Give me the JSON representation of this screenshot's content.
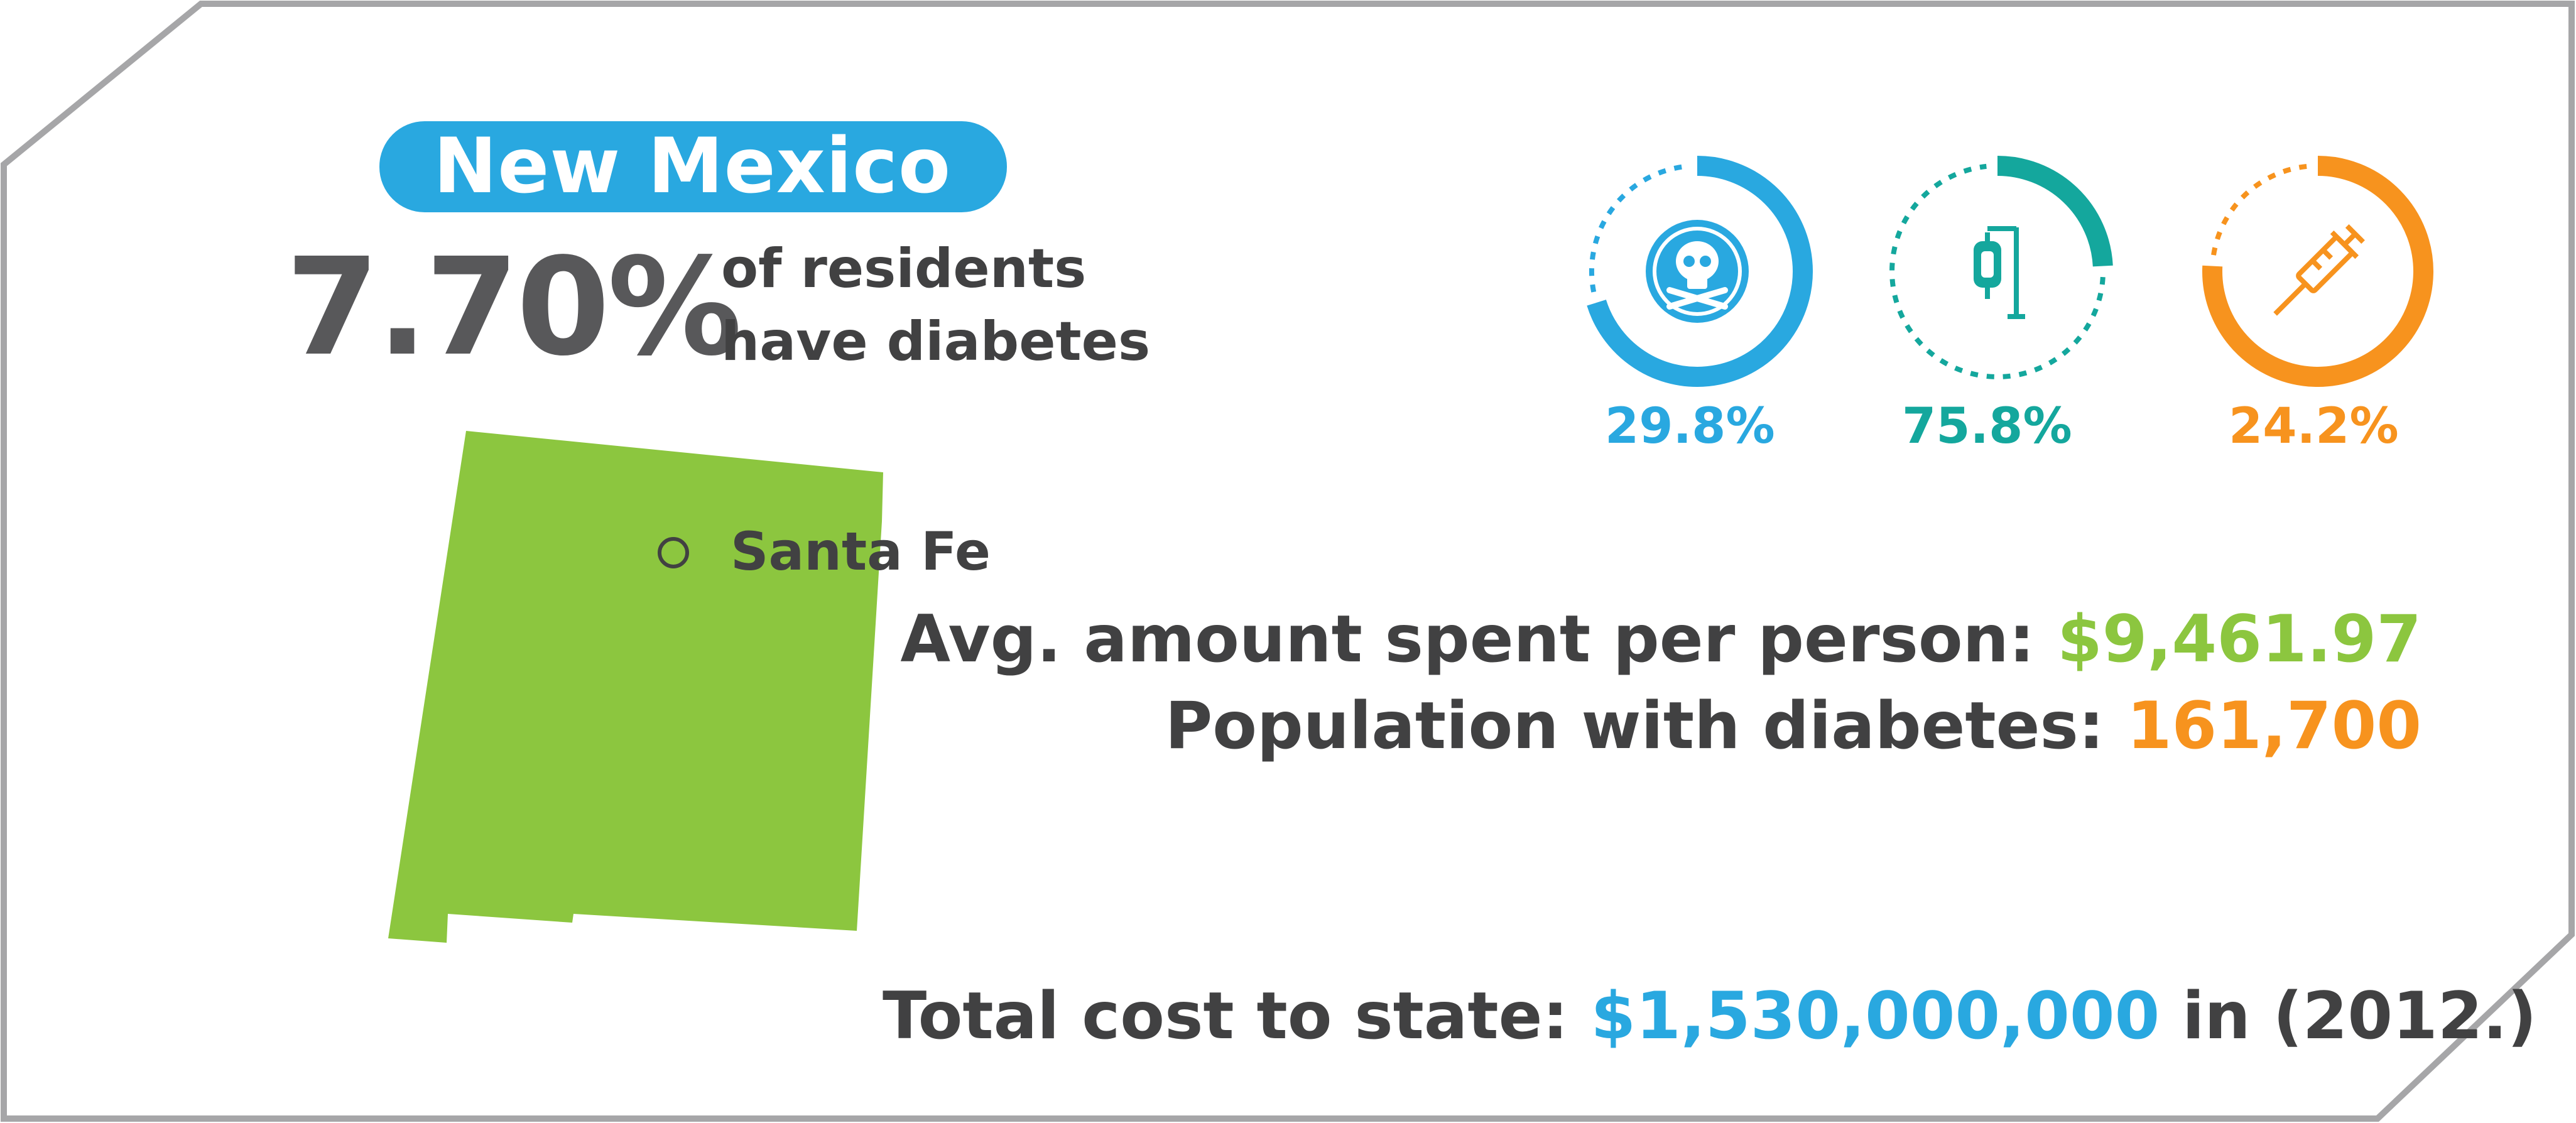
{
  "state": {
    "name": "New Mexico",
    "capital": "Santa Fe"
  },
  "prevalence": {
    "value": "7.70%",
    "line1": "of residents",
    "line2": "have diabetes",
    "fraction": 0.077
  },
  "rings": [
    {
      "label": "29.8%",
      "fraction": 0.298,
      "icon": "skull-crossbones-icon",
      "color": "#29a8e0"
    },
    {
      "label": "75.8%",
      "fraction": 0.758,
      "icon": "iv-drip-bag-icon",
      "color": "#14a79d"
    },
    {
      "label": "24.2%",
      "fraction": 0.242,
      "icon": "syringe-icon",
      "color": "#f7931e"
    }
  ],
  "stats": {
    "avg_label": "Avg. amount spent per person: ",
    "avg_value": "$9,461.97",
    "pop_label": "Population with diabetes: ",
    "pop_value": "161,700",
    "total_label": "Total cost to state: ",
    "total_value": "$1,530,000,000",
    "total_suffix": " in (2012.)"
  },
  "colors": {
    "accent_blue": "#29a8e0",
    "accent_teal": "#14a79d",
    "accent_orange": "#f7931e",
    "map_green": "#8cc63f",
    "text_dark": "#414142",
    "border_gray": "#a6a6a8"
  }
}
